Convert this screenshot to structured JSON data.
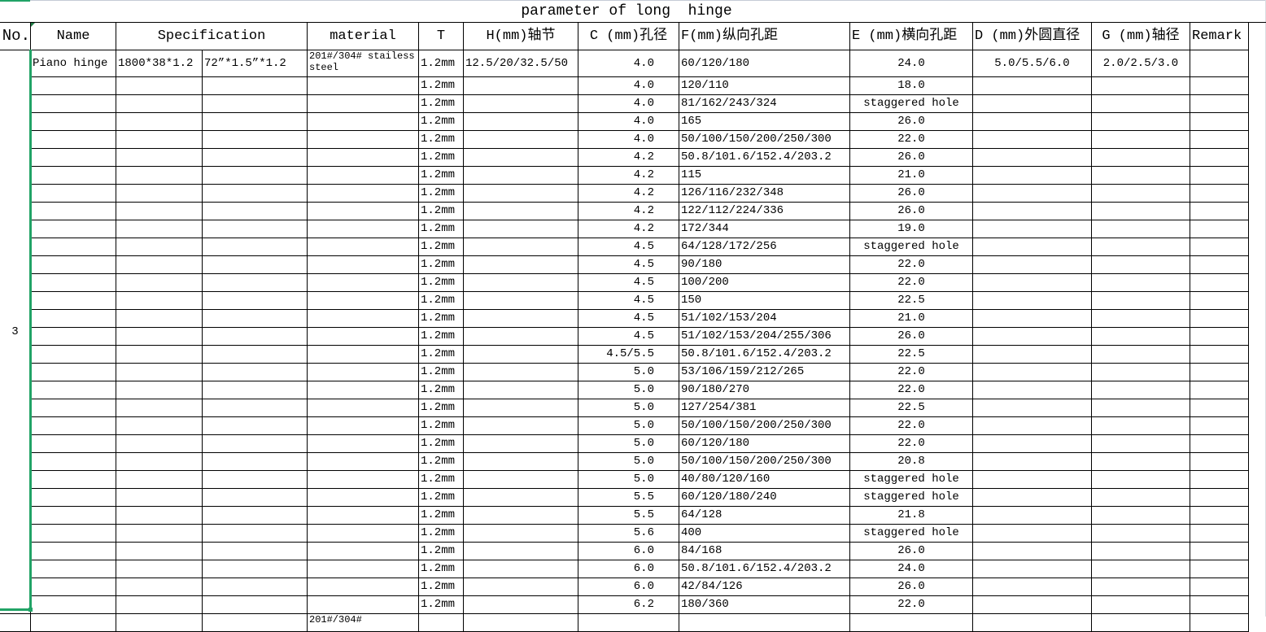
{
  "title": "parameter of long  hinge",
  "headers": [
    "No.",
    "Name",
    "Specification",
    "material",
    "T",
    "H(mm)轴节",
    "C (mm)孔径",
    "F(mm)纵向孔距",
    "E (mm)横向孔距",
    "D (mm)外圆直径",
    "G (mm)轴径",
    "Remark"
  ],
  "no_value": "3",
  "first_row": {
    "name": "Piano hinge",
    "spec_metric": "1800*38*1.2",
    "spec_imperial": "72”*1.5”*1.2",
    "material": "201#/304# stailess steel",
    "t": "1.2mm",
    "h": "12.5/20/32.5/50",
    "c": "4.0",
    "f": "60/120/180",
    "e": "24.0",
    "d": "5.0/5.5/6.0",
    "g": "2.0/2.5/3.0"
  },
  "rows": [
    {
      "t": "1.2mm",
      "c": "4.0",
      "f": "120/110",
      "e": "18.0"
    },
    {
      "t": "1.2mm",
      "c": "4.0",
      "f": "81/162/243/324",
      "e": "staggered hole"
    },
    {
      "t": "1.2mm",
      "c": "4.0",
      "f": "165",
      "e": "26.0"
    },
    {
      "t": "1.2mm",
      "c": "4.0",
      "f": "50/100/150/200/250/300",
      "e": "22.0"
    },
    {
      "t": "1.2mm",
      "c": "4.2",
      "f": "50.8/101.6/152.4/203.2",
      "e": "26.0"
    },
    {
      "t": "1.2mm",
      "c": "4.2",
      "f": "115",
      "e": "21.0"
    },
    {
      "t": "1.2mm",
      "c": "4.2",
      "f": "126/116/232/348",
      "e": "26.0"
    },
    {
      "t": "1.2mm",
      "c": "4.2",
      "f": "122/112/224/336",
      "e": "26.0"
    },
    {
      "t": "1.2mm",
      "c": "4.2",
      "f": "172/344",
      "e": "19.0"
    },
    {
      "t": "1.2mm",
      "c": "4.5",
      "f": "64/128/172/256",
      "e": "staggered hole"
    },
    {
      "t": "1.2mm",
      "c": "4.5",
      "f": "90/180",
      "e": "22.0"
    },
    {
      "t": "1.2mm",
      "c": "4.5",
      "f": "100/200",
      "e": "22.0"
    },
    {
      "t": "1.2mm",
      "c": "4.5",
      "f": "150",
      "e": "22.5"
    },
    {
      "t": "1.2mm",
      "c": "4.5",
      "f": "51/102/153/204",
      "e": "21.0"
    },
    {
      "t": "1.2mm",
      "c": "4.5",
      "f": "51/102/153/204/255/306",
      "e": "26.0"
    },
    {
      "t": "1.2mm",
      "c": "4.5/5.5",
      "f": "50.8/101.6/152.4/203.2",
      "e": "22.5"
    },
    {
      "t": "1.2mm",
      "c": "5.0",
      "f": "53/106/159/212/265",
      "e": "22.0"
    },
    {
      "t": "1.2mm",
      "c": "5.0",
      "f": "90/180/270",
      "e": "22.0"
    },
    {
      "t": "1.2mm",
      "c": "5.0",
      "f": "127/254/381",
      "e": "22.5"
    },
    {
      "t": "1.2mm",
      "c": "5.0",
      "f": "50/100/150/200/250/300",
      "e": "22.0"
    },
    {
      "t": "1.2mm",
      "c": "5.0",
      "f": "60/120/180",
      "e": "22.0"
    },
    {
      "t": "1.2mm",
      "c": "5.0",
      "f": "50/100/150/200/250/300",
      "e": "20.8"
    },
    {
      "t": "1.2mm",
      "c": "5.0",
      "f": "40/80/120/160",
      "e": "staggered hole"
    },
    {
      "t": "1.2mm",
      "c": "5.5",
      "f": "60/120/180/240",
      "e": "staggered hole"
    },
    {
      "t": "1.2mm",
      "c": "5.5",
      "f": "64/128",
      "e": "21.8"
    },
    {
      "t": "1.2mm",
      "c": "5.6",
      "f": "400",
      "e": "staggered hole"
    },
    {
      "t": "1.2mm",
      "c": "6.0",
      "f": "84/168",
      "e": "26.0"
    },
    {
      "t": "1.2mm",
      "c": "6.0",
      "f": "50.8/101.6/152.4/203.2",
      "e": "24.0"
    },
    {
      "t": "1.2mm",
      "c": "6.0",
      "f": "42/84/126",
      "e": "26.0"
    },
    {
      "t": "1.2mm",
      "c": "6.2",
      "f": "180/360",
      "e": "22.0"
    }
  ],
  "next_material_partial": "201#/304#",
  "colors": {
    "selection": "#21a366",
    "grid": "#000000"
  }
}
